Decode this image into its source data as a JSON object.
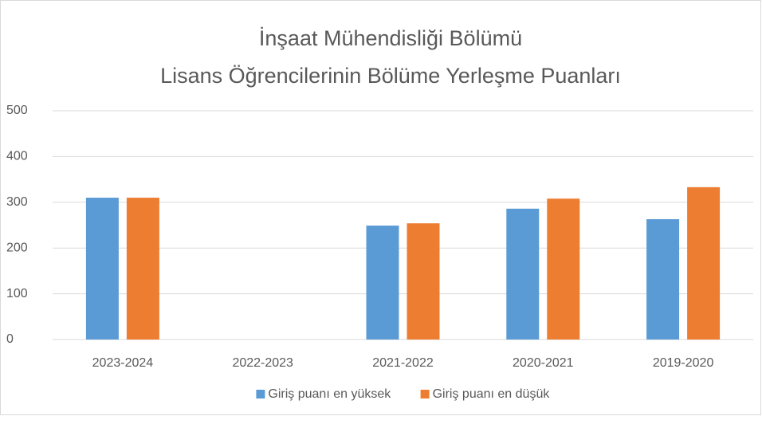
{
  "chart_data": {
    "type": "bar",
    "title": [
      "İnşaat Mühendisliği Bölümü",
      "Lisans Öğrencilerinin Bölüme Yerleşme Puanları"
    ],
    "categories": [
      "2023-2024",
      "2022-2023",
      "2021-2022",
      "2020-2021",
      "2019-2020"
    ],
    "series": [
      {
        "name": "Giriş puanı en yüksek",
        "color": "#5b9bd5",
        "values": [
          310,
          null,
          249,
          286,
          263
        ]
      },
      {
        "name": "Giriş puanı en düşük",
        "color": "#ed7d31",
        "values": [
          310,
          null,
          254,
          308,
          333
        ]
      }
    ],
    "ylim": [
      0,
      500
    ],
    "yticks": [
      0,
      100,
      200,
      300,
      400,
      500
    ],
    "grid": true,
    "legend": "bottom"
  }
}
